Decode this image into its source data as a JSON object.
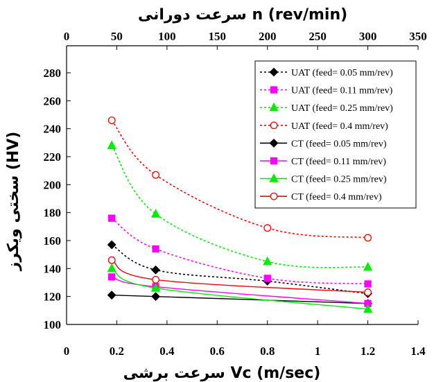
{
  "chart_data": {
    "type": "line",
    "x_bottom": {
      "label": "سرعت برشی   Vc  (m/sec)",
      "range": [
        0,
        1.4
      ],
      "ticks": [
        "0",
        "0.2",
        "0.4",
        "0.6",
        "0.8",
        "1",
        "1.2",
        "1.4"
      ],
      "tick_values": [
        0,
        0.2,
        0.4,
        0.6,
        0.8,
        1,
        1.2,
        1.4
      ]
    },
    "x_top": {
      "label": "سرعت دورانی   n  (rev/min)",
      "range": [
        0,
        350
      ],
      "ticks": [
        "0",
        "50",
        "100",
        "150",
        "200",
        "250",
        "300",
        "350"
      ],
      "tick_values": [
        0,
        50,
        100,
        150,
        200,
        250,
        300,
        350
      ]
    },
    "y": {
      "label": "سختی ویکرز   (HV)",
      "range": [
        100,
        285
      ],
      "ticks": [
        "100",
        "120",
        "140",
        "160",
        "180",
        "200",
        "220",
        "240",
        "260",
        "280"
      ],
      "tick_values": [
        100,
        120,
        140,
        160,
        180,
        200,
        220,
        240,
        260,
        280
      ]
    },
    "grid": false,
    "legend_position": "top-right",
    "x": [
      0.18,
      0.355,
      0.8,
      1.2
    ],
    "series": [
      {
        "name": "UAT  (feed= 0.05 mm/rev)",
        "values": [
          157,
          139,
          131,
          122
        ],
        "color": "#000000",
        "marker": "diamond",
        "fill": "filled",
        "dashed": true
      },
      {
        "name": "UAT  (feed= 0.11 mm/rev)",
        "values": [
          176,
          154,
          133,
          129
        ],
        "color": "#ff00ff",
        "marker": "square",
        "fill": "filled",
        "dashed": true
      },
      {
        "name": "UAT  (feed= 0.25 mm/rev)",
        "values": [
          228,
          179,
          145,
          141
        ],
        "color": "#00ee00",
        "marker": "triangle",
        "fill": "filled",
        "dashed": true
      },
      {
        "name": "UAT  (feed= 0.4 mm/rev)",
        "values": [
          246,
          207,
          169,
          162
        ],
        "color": "#ff0000",
        "marker": "circle",
        "fill": "open",
        "dashed": true
      },
      {
        "name": "CT  (feed= 0.05 mm/rev)",
        "values": [
          121,
          120,
          null,
          115
        ],
        "color": "#000000",
        "marker": "diamond",
        "fill": "filled",
        "dashed": false
      },
      {
        "name": "CT  (feed= 0.11 mm/rev)",
        "values": [
          134,
          127,
          null,
          115
        ],
        "color": "#ff00ff",
        "marker": "square",
        "fill": "filled",
        "dashed": false
      },
      {
        "name": "CT  (feed= 0.25 mm/rev)",
        "values": [
          140,
          126,
          null,
          111
        ],
        "color": "#00ee00",
        "marker": "triangle",
        "fill": "filled",
        "dashed": false
      },
      {
        "name": "CT  (feed= 0.4 mm/rev)",
        "values": [
          146,
          132,
          null,
          123
        ],
        "color": "#ff0000",
        "marker": "circle",
        "fill": "open",
        "dashed": false
      }
    ]
  }
}
